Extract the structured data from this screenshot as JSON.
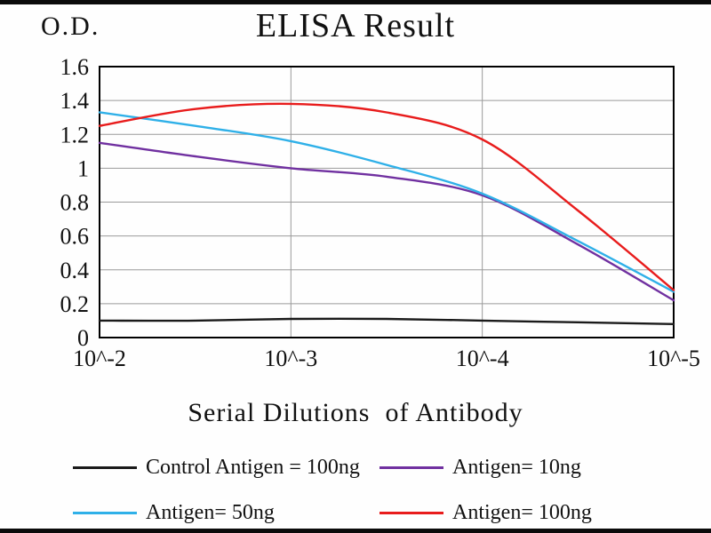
{
  "chart_data": {
    "type": "line",
    "title": "ELISA Result",
    "ylabel": "O.D.",
    "xlabel": "Serial Dilutions  of Antibody",
    "ylim": [
      0,
      1.6
    ],
    "grid": true,
    "legend_position": "bottom",
    "x_tick_labels": [
      "10^-2",
      "10^-3",
      "10^-4",
      "10^-5"
    ],
    "y_tick_values": [
      0,
      0.2,
      0.4,
      0.6,
      0.8,
      1,
      1.2,
      1.4,
      1.6
    ],
    "y_tick_labels": [
      "0",
      "0.2",
      "0.4",
      "0.6",
      "0.8",
      "1",
      "1.2",
      "1.4",
      "1.6"
    ],
    "x_positions_decades": [
      0,
      0.5,
      1,
      1.5,
      2,
      2.5,
      3
    ],
    "series": [
      {
        "name": "Control Antigen = 100ng",
        "color": "#1a1a1a",
        "values": [
          0.1,
          0.1,
          0.11,
          0.11,
          0.1,
          0.09,
          0.08
        ]
      },
      {
        "name": "Antigen= 10ng",
        "color": "#7030a0",
        "values": [
          1.15,
          1.07,
          1.0,
          0.95,
          0.84,
          0.55,
          0.22
        ]
      },
      {
        "name": "Antigen= 50ng",
        "color": "#2fb0e8",
        "values": [
          1.33,
          1.25,
          1.16,
          1.02,
          0.85,
          0.57,
          0.27
        ]
      },
      {
        "name": "Antigen= 100ng",
        "color": "#e81c1c",
        "values": [
          1.25,
          1.35,
          1.38,
          1.33,
          1.17,
          0.75,
          0.28
        ]
      }
    ],
    "plot_colors": {
      "grid": "#9a9a9a",
      "border": "#000000",
      "background": "#fefefe"
    }
  }
}
